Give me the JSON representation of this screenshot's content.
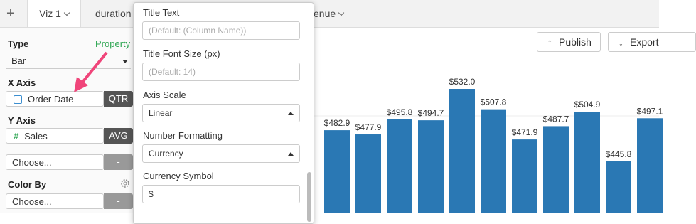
{
  "tabs": {
    "add": "+",
    "items": [
      "Viz 1",
      "duration",
      "enue"
    ]
  },
  "left_panel": {
    "type_label": "Type",
    "property_link": "Property",
    "type_value": "Bar",
    "x_axis_label": "X Axis",
    "x_field": "Order Date",
    "x_agg": "QTR",
    "y_axis_label": "Y Axis",
    "y_field_icon": "#",
    "y_field": "Sales",
    "y_agg": "AVG",
    "choose_1": "Choose...",
    "choose_1_btn": "-",
    "color_by_label": "Color By",
    "color_by_value": "Choose...",
    "color_by_btn": "-"
  },
  "toolbar": {
    "publish": "Publish",
    "export": "Export"
  },
  "popup": {
    "title_text_label": "Title Text",
    "title_text_placeholder": "(Default: (Column Name))",
    "title_font_size_label": "Title Font Size (px)",
    "title_font_size_placeholder": "(Default: 14)",
    "axis_scale_label": "Axis Scale",
    "axis_scale_value": "Linear",
    "number_formatting_label": "Number Formatting",
    "number_formatting_value": "Currency",
    "currency_symbol_label": "Currency Symbol",
    "currency_symbol_value": "$"
  },
  "chart_data": {
    "type": "bar",
    "values": [
      482.9,
      477.9,
      495.8,
      494.7,
      532.0,
      507.8,
      471.9,
      487.7,
      504.9,
      445.8,
      497.1
    ],
    "value_labels": [
      "$482.9",
      "$477.9",
      "$495.8",
      "$494.7",
      "$532.0",
      "$507.8",
      "$471.9",
      "$487.7",
      "$504.9",
      "$445.8",
      "$497.1"
    ],
    "color": "#2a78b4"
  }
}
